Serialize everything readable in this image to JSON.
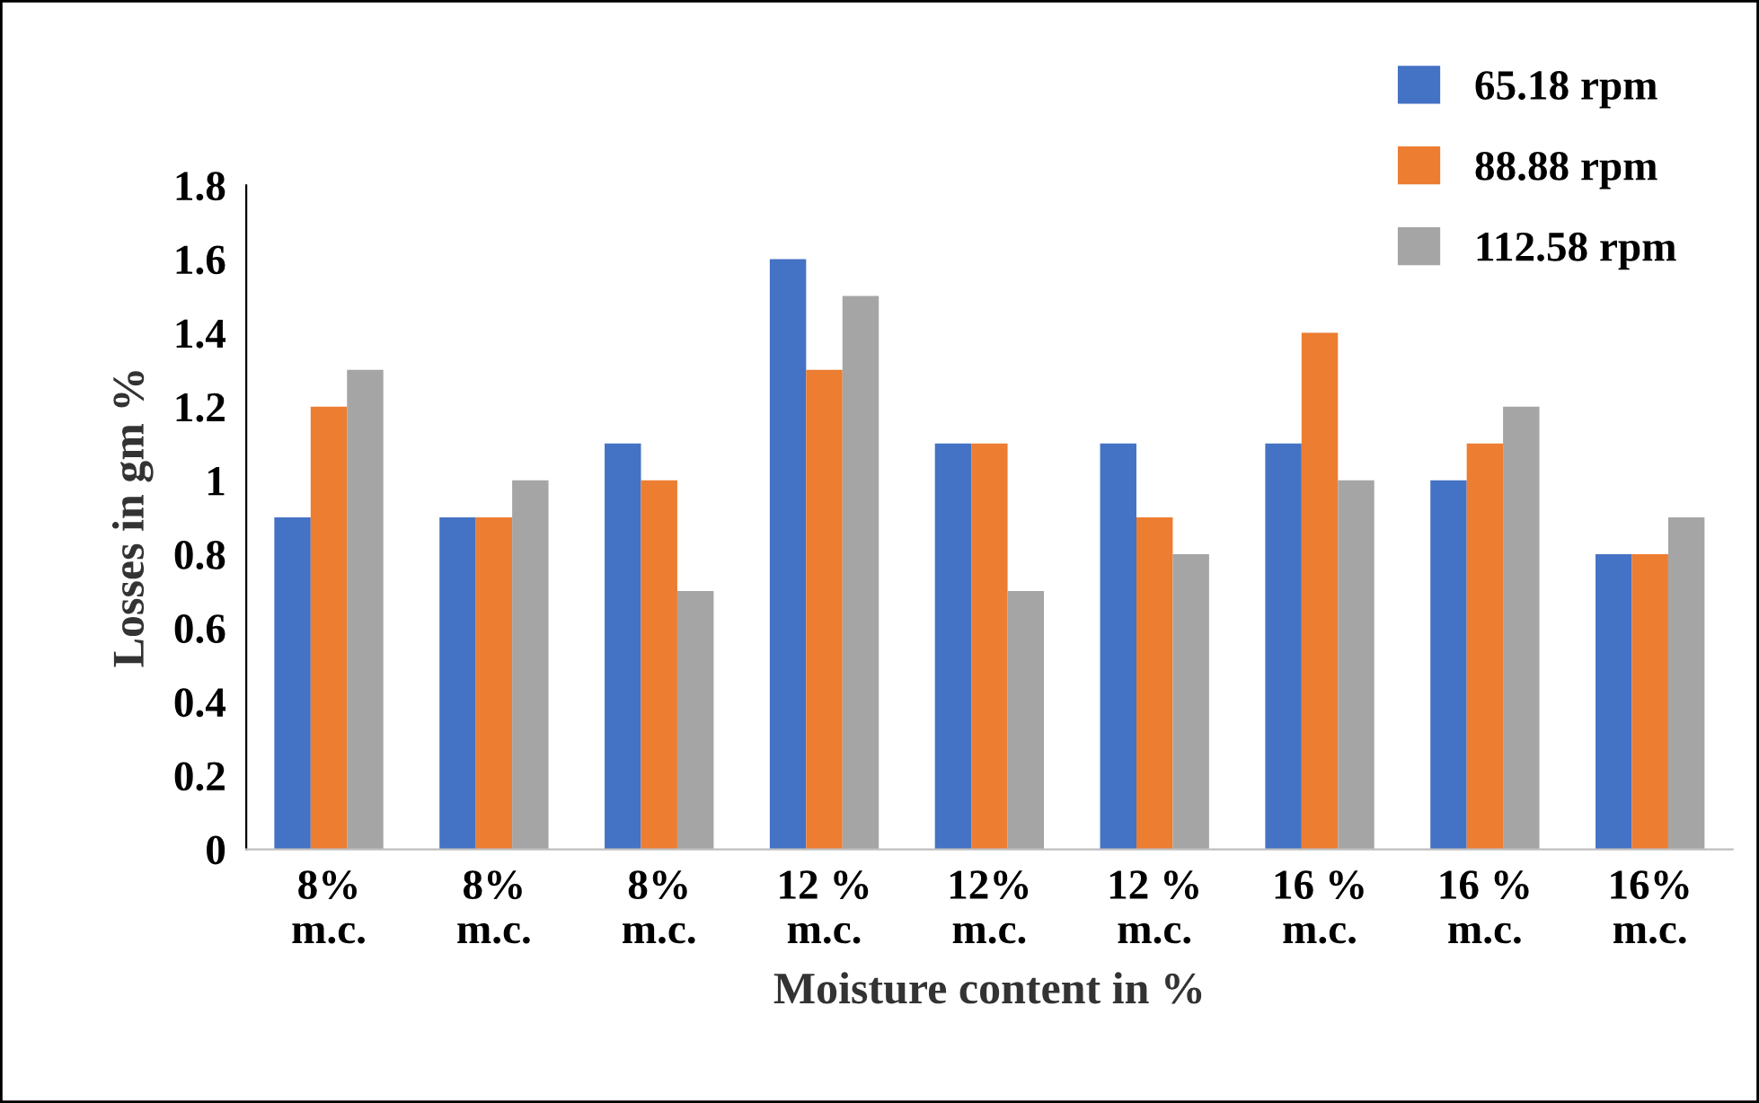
{
  "chart_data": {
    "type": "bar",
    "xlabel": "Moisture content in %",
    "ylabel": "Losses in gm %",
    "categories": [
      "8%\nm.c.",
      "8%\nm.c.",
      "8%\nm.c.",
      "12 %\nm.c.",
      "12%\nm.c.",
      "12 %\nm.c.",
      "16 %\nm.c.",
      "16 %\nm.c.",
      "16%\nm.c."
    ],
    "series": [
      {
        "name": "65.18 rpm",
        "color": "#4472c4",
        "values": [
          0.9,
          0.9,
          1.1,
          1.6,
          1.1,
          1.1,
          1.1,
          1.0,
          0.8
        ]
      },
      {
        "name": "88.88 rpm",
        "color": "#ed7d31",
        "values": [
          1.2,
          0.9,
          1.0,
          1.3,
          1.1,
          0.9,
          1.4,
          1.1,
          0.8
        ]
      },
      {
        "name": "112.58 rpm",
        "color": "#a5a5a5",
        "values": [
          1.3,
          1.0,
          0.7,
          1.5,
          0.7,
          0.8,
          1.0,
          1.2,
          0.9
        ]
      }
    ],
    "ylim": [
      0,
      1.8
    ],
    "yticks": [
      0,
      0.2,
      0.4,
      0.6,
      0.8,
      1,
      1.2,
      1.4,
      1.6,
      1.8
    ],
    "grid": false,
    "legend": "top right"
  }
}
